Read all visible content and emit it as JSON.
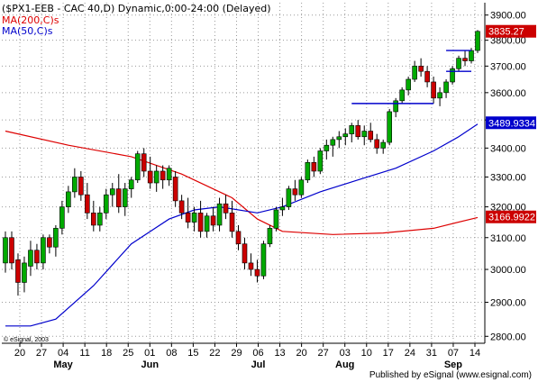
{
  "chart_data": {
    "type": "candlestick",
    "title": "($PX1-EEB - CAC 40,D) Dynamic,0:00-24:00 (Delayed)",
    "legend": [
      {
        "label": "MA(200,C)s",
        "color": "#dd0000"
      },
      {
        "label": "MA(50,C)s",
        "color": "#0000cc"
      }
    ],
    "price_tags": [
      {
        "value": "3835.27",
        "price": 3835.27,
        "bg": "#cc0000"
      },
      {
        "value": "3489.9334",
        "price": 3489.93,
        "bg": "#0000cc"
      },
      {
        "value": "3166.9922",
        "price": 3166.99,
        "bg": "#cc0000"
      }
    ],
    "y_axis": {
      "ticks": [
        2800,
        2900,
        3000,
        3100,
        3200,
        3300,
        3400,
        3500,
        3600,
        3700,
        3800,
        3900
      ],
      "tick_labels": [
        "2800.00",
        "2900.00",
        "3000.00",
        "3100.00",
        "3200.00",
        "3300.00",
        "3400.00",
        "3500.00",
        "3600.00",
        "3700.00",
        "3800.00",
        "3900.00"
      ],
      "range": [
        2780,
        3950
      ],
      "scale": "log"
    },
    "x_axis": {
      "day_labels": [
        "20",
        "27",
        "04",
        "11",
        "18",
        "25",
        "01",
        "08",
        "15",
        "22",
        "29",
        "06",
        "13",
        "20",
        "27",
        "03",
        "10",
        "17",
        "24",
        "31",
        "07",
        "14"
      ],
      "month_labels": [
        "May",
        "Jun",
        "Jul",
        "Aug",
        "Sep"
      ],
      "month_label_index": [
        2,
        6,
        11,
        15,
        20
      ]
    },
    "up_color": "#00aa00",
    "down_color": "#cc0000",
    "ohlc": [
      [
        3020,
        3120,
        2990,
        3100
      ],
      [
        3100,
        3120,
        3000,
        3020
      ],
      [
        3030,
        3050,
        2920,
        2960
      ],
      [
        2960,
        3040,
        2930,
        3020
      ],
      [
        3010,
        3090,
        2980,
        3060
      ],
      [
        3060,
        3080,
        3000,
        3020
      ],
      [
        3020,
        3110,
        3000,
        3100
      ],
      [
        3100,
        3110,
        3050,
        3070
      ],
      [
        3070,
        3140,
        3040,
        3130
      ],
      [
        3130,
        3220,
        3110,
        3200
      ],
      [
        3200,
        3270,
        3180,
        3250
      ],
      [
        3250,
        3330,
        3230,
        3300
      ],
      [
        3300,
        3320,
        3220,
        3240
      ],
      [
        3240,
        3280,
        3160,
        3180
      ],
      [
        3180,
        3220,
        3120,
        3140
      ],
      [
        3140,
        3200,
        3120,
        3180
      ],
      [
        3180,
        3260,
        3160,
        3240
      ],
      [
        3240,
        3280,
        3200,
        3260
      ],
      [
        3260,
        3310,
        3180,
        3200
      ],
      [
        3200,
        3280,
        3170,
        3260
      ],
      [
        3260,
        3300,
        3230,
        3290
      ],
      [
        3290,
        3390,
        3280,
        3380
      ],
      [
        3380,
        3400,
        3300,
        3320
      ],
      [
        3320,
        3370,
        3260,
        3280
      ],
      [
        3280,
        3340,
        3250,
        3320
      ],
      [
        3320,
        3340,
        3260,
        3290
      ],
      [
        3290,
        3340,
        3270,
        3330
      ],
      [
        3300,
        3320,
        3200,
        3220
      ],
      [
        3220,
        3240,
        3160,
        3180
      ],
      [
        3180,
        3230,
        3130,
        3150
      ],
      [
        3150,
        3200,
        3120,
        3180
      ],
      [
        3180,
        3220,
        3100,
        3120
      ],
      [
        3120,
        3180,
        3100,
        3170
      ],
      [
        3170,
        3200,
        3120,
        3140
      ],
      [
        3140,
        3230,
        3120,
        3210
      ],
      [
        3210,
        3240,
        3160,
        3180
      ],
      [
        3180,
        3220,
        3100,
        3120
      ],
      [
        3120,
        3140,
        3060,
        3080
      ],
      [
        3080,
        3100,
        3000,
        3020
      ],
      [
        3020,
        3050,
        2980,
        3000
      ],
      [
        3000,
        3030,
        2960,
        2980
      ],
      [
        2980,
        3090,
        2970,
        3080
      ],
      [
        3080,
        3140,
        3070,
        3130
      ],
      [
        3130,
        3200,
        3120,
        3190
      ],
      [
        3190,
        3230,
        3170,
        3200
      ],
      [
        3200,
        3270,
        3190,
        3260
      ],
      [
        3260,
        3290,
        3220,
        3240
      ],
      [
        3240,
        3300,
        3230,
        3290
      ],
      [
        3290,
        3360,
        3280,
        3350
      ],
      [
        3350,
        3370,
        3300,
        3320
      ],
      [
        3320,
        3400,
        3310,
        3390
      ],
      [
        3390,
        3430,
        3360,
        3410
      ],
      [
        3410,
        3440,
        3370,
        3430
      ],
      [
        3430,
        3460,
        3400,
        3440
      ],
      [
        3440,
        3470,
        3410,
        3450
      ],
      [
        3450,
        3490,
        3420,
        3480
      ],
      [
        3480,
        3500,
        3430,
        3440
      ],
      [
        3440,
        3480,
        3410,
        3460
      ],
      [
        3460,
        3490,
        3420,
        3430
      ],
      [
        3430,
        3450,
        3380,
        3400
      ],
      [
        3400,
        3430,
        3380,
        3420
      ],
      [
        3420,
        3540,
        3410,
        3530
      ],
      [
        3530,
        3580,
        3510,
        3570
      ],
      [
        3570,
        3620,
        3560,
        3610
      ],
      [
        3610,
        3660,
        3590,
        3650
      ],
      [
        3650,
        3720,
        3640,
        3700
      ],
      [
        3700,
        3730,
        3660,
        3680
      ],
      [
        3680,
        3700,
        3620,
        3640
      ],
      [
        3640,
        3660,
        3560,
        3580
      ],
      [
        3580,
        3620,
        3550,
        3600
      ],
      [
        3600,
        3650,
        3580,
        3640
      ],
      [
        3640,
        3700,
        3630,
        3690
      ],
      [
        3690,
        3740,
        3680,
        3730
      ],
      [
        3730,
        3760,
        3700,
        3720
      ],
      [
        3720,
        3770,
        3710,
        3760
      ],
      [
        3760,
        3840,
        3750,
        3835
      ]
    ],
    "ma200": [
      [
        0,
        3460
      ],
      [
        10,
        3410
      ],
      [
        20,
        3370
      ],
      [
        28,
        3310
      ],
      [
        36,
        3230
      ],
      [
        40,
        3160
      ],
      [
        44,
        3120
      ],
      [
        52,
        3110
      ],
      [
        60,
        3115
      ],
      [
        68,
        3130
      ],
      [
        75,
        3165
      ]
    ],
    "ma50": [
      [
        0,
        2830
      ],
      [
        4,
        2830
      ],
      [
        8,
        2850
      ],
      [
        14,
        2950
      ],
      [
        20,
        3080
      ],
      [
        26,
        3160
      ],
      [
        30,
        3190
      ],
      [
        34,
        3200
      ],
      [
        40,
        3180
      ],
      [
        44,
        3200
      ],
      [
        50,
        3250
      ],
      [
        56,
        3290
      ],
      [
        62,
        3330
      ],
      [
        68,
        3390
      ],
      [
        72,
        3440
      ],
      [
        75,
        3485
      ]
    ],
    "h_lines": [
      {
        "from": 55,
        "to": 68,
        "price": 3560
      },
      {
        "from": 70,
        "to": 74,
        "price": 3680
      },
      {
        "from": 70,
        "to": 74,
        "price": 3760
      }
    ],
    "footer_left": "© eSignal, 2003",
    "footer_right": "Published by eSignal (www.esignal.com)"
  }
}
